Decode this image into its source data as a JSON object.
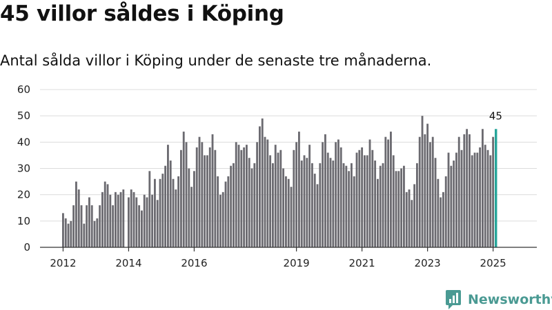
{
  "header": {
    "title": "45 villor såldes i Köping",
    "subtitle": "Antal sålda villor i Köping under de senaste tre månaderna."
  },
  "chart_data": {
    "type": "bar",
    "title": "45 villor såldes i Köping",
    "subtitle": "Antal sålda villor i Köping under de senaste tre månaderna.",
    "xlabel": "",
    "ylabel": "",
    "ylim": [
      0,
      60
    ],
    "yticks": [
      0,
      10,
      20,
      30,
      40,
      50,
      60
    ],
    "grid": true,
    "bar_color": "#6b6a70",
    "highlight_color": "#26a59a",
    "axis_color": "#333333",
    "grid_color": "#dcdcdc",
    "xticks": [
      {
        "label": "2012",
        "index": 0
      },
      {
        "label": "2014",
        "index": 25
      },
      {
        "label": "2016",
        "index": 50
      },
      {
        "label": "2019",
        "index": 89
      },
      {
        "label": "2021",
        "index": 114
      },
      {
        "label": "2023",
        "index": 139
      },
      {
        "label": "2025",
        "index": 164
      }
    ],
    "values": [
      13,
      11,
      9,
      10,
      16,
      25,
      22,
      16,
      9,
      16,
      19,
      16,
      10,
      11,
      16,
      21,
      25,
      24,
      20,
      16,
      21,
      20,
      21,
      22,
      0,
      19,
      22,
      21,
      19,
      16,
      14,
      20,
      19,
      29,
      20,
      26,
      18,
      26,
      28,
      31,
      39,
      33,
      26,
      22,
      27,
      37,
      44,
      40,
      30,
      23,
      29,
      38,
      42,
      40,
      35,
      35,
      38,
      43,
      37,
      27,
      20,
      21,
      25,
      27,
      31,
      32,
      40,
      39,
      37,
      38,
      39,
      34,
      30,
      32,
      40,
      46,
      49,
      42,
      41,
      35,
      32,
      39,
      36,
      37,
      30,
      27,
      26,
      23,
      37,
      40,
      44,
      33,
      35,
      34,
      39,
      32,
      28,
      24,
      32,
      40,
      43,
      36,
      34,
      33,
      40,
      41,
      38,
      32,
      31,
      29,
      32,
      27,
      36,
      37,
      38,
      35,
      35,
      41,
      37,
      33,
      26,
      31,
      32,
      42,
      41,
      44,
      35,
      29,
      29,
      30,
      31,
      21,
      22,
      18,
      24,
      32,
      42,
      50,
      43,
      47,
      40,
      42,
      34,
      26,
      19,
      21,
      27,
      36,
      31,
      33,
      36,
      42,
      37,
      43,
      45,
      43,
      35,
      36,
      36,
      38,
      45,
      39,
      37,
      35,
      42,
      45
    ],
    "last_label": "45"
  },
  "brand": {
    "name": "Newsworthy",
    "logo_icon": "newsworthy-logo-icon"
  }
}
